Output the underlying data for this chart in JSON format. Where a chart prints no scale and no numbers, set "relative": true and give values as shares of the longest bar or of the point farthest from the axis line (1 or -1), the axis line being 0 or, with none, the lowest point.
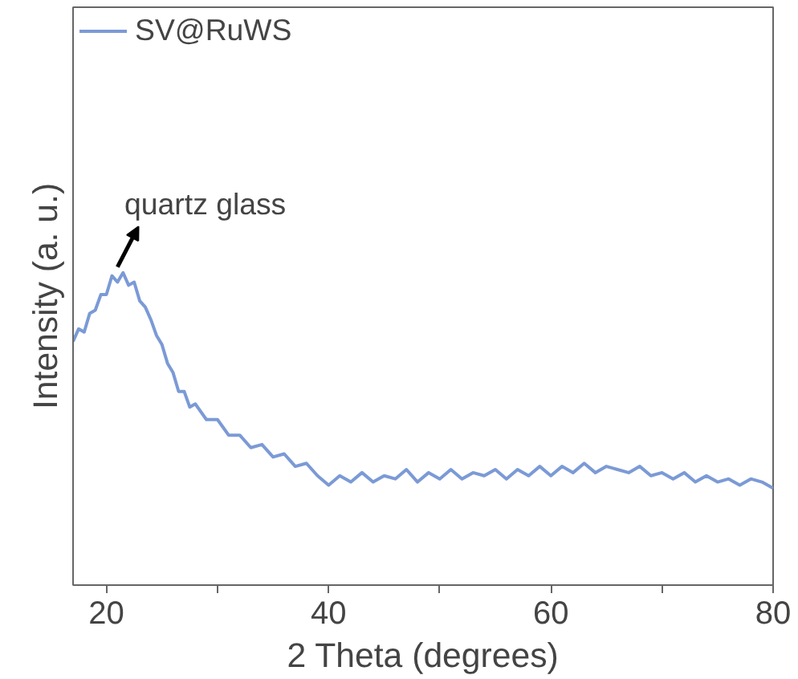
{
  "chart_data": {
    "type": "line",
    "relative": true,
    "xlabel": "2 Theta (degrees)",
    "ylabel": "Intensity (a. u.)",
    "xlim": [
      17,
      80
    ],
    "xticks": [
      20,
      {
        "value": 30,
        "label": null
      },
      40,
      {
        "value": 50,
        "label": null
      },
      60,
      {
        "value": 70,
        "label": null
      },
      80
    ],
    "legend": "top left",
    "grid": false,
    "annotations": [
      {
        "text": "quartz glass",
        "x": 21,
        "y": 1.0
      }
    ],
    "series": [
      {
        "name": "SV@RuWS",
        "color": "#7b9ad6",
        "x": [
          17,
          17.5,
          18,
          18.5,
          19,
          19.5,
          20,
          20.5,
          21,
          21.5,
          22,
          22.5,
          23,
          23.5,
          24,
          24.5,
          25,
          25.5,
          26,
          26.5,
          27,
          27.5,
          28,
          29,
          30,
          31,
          32,
          33,
          34,
          35,
          36,
          37,
          38,
          39,
          40,
          41,
          42,
          43,
          44,
          45,
          46,
          47,
          48,
          49,
          50,
          51,
          52,
          53,
          54,
          55,
          56,
          57,
          58,
          59,
          60,
          61,
          62,
          63,
          64,
          65,
          66,
          67,
          68,
          69,
          70,
          71,
          72,
          73,
          74,
          75,
          76,
          77,
          78,
          79,
          80
        ],
        "values": [
          0.78,
          0.82,
          0.81,
          0.87,
          0.88,
          0.93,
          0.93,
          0.99,
          0.97,
          1.0,
          0.96,
          0.97,
          0.91,
          0.89,
          0.85,
          0.8,
          0.77,
          0.71,
          0.68,
          0.62,
          0.62,
          0.57,
          0.58,
          0.53,
          0.53,
          0.48,
          0.48,
          0.44,
          0.45,
          0.41,
          0.42,
          0.38,
          0.39,
          0.35,
          0.32,
          0.35,
          0.33,
          0.36,
          0.33,
          0.35,
          0.34,
          0.37,
          0.33,
          0.36,
          0.34,
          0.37,
          0.34,
          0.36,
          0.35,
          0.37,
          0.34,
          0.37,
          0.35,
          0.38,
          0.35,
          0.38,
          0.36,
          0.39,
          0.36,
          0.38,
          0.37,
          0.36,
          0.38,
          0.35,
          0.36,
          0.34,
          0.36,
          0.33,
          0.35,
          0.33,
          0.34,
          0.32,
          0.34,
          0.33,
          0.31
        ]
      }
    ]
  }
}
